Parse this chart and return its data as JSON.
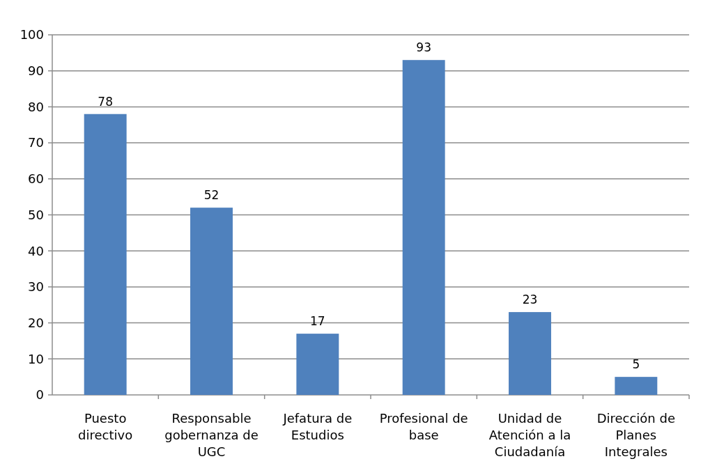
{
  "chart_data": {
    "type": "bar",
    "categories": [
      "Puesto directivo",
      "Responsable gobernanza de UGC",
      "Jefatura de Estudios",
      "Profesional de base",
      "Unidad de Atención a la Ciudadanía",
      "Dirección de Planes Integrales"
    ],
    "values": [
      78,
      52,
      17,
      93,
      23,
      5
    ],
    "color": "#4f81bd",
    "ylim": [
      0,
      100
    ],
    "yticks": [
      0,
      10,
      20,
      30,
      40,
      50,
      60,
      70,
      80,
      90,
      100
    ],
    "grid": "y",
    "data_labels": true
  }
}
